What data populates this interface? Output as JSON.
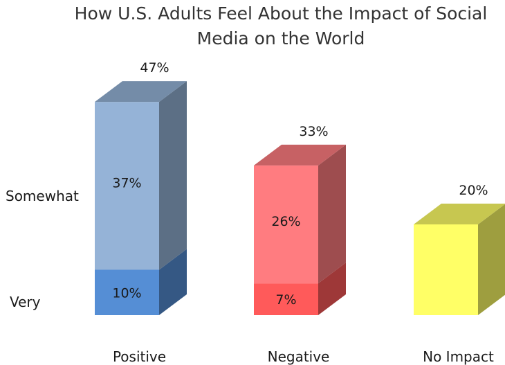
{
  "chart_data": {
    "type": "bar",
    "subtype": "stacked-3d",
    "title": "How U.S. Adults Feel About the Impact of Social Media on the World",
    "categories": [
      "Positive",
      "Negative",
      "No Impact"
    ],
    "series": [
      {
        "name": "Very",
        "values": [
          10,
          7,
          20
        ]
      },
      {
        "name": "Somewhat",
        "values": [
          37,
          26,
          null
        ]
      }
    ],
    "totals": [
      47,
      33,
      20
    ],
    "value_labels": {
      "Very": [
        "10%",
        "7%",
        ""
      ],
      "Somewhat": [
        "37%",
        "26%",
        ""
      ],
      "totals": [
        "47%",
        "33%",
        "20%"
      ]
    },
    "row_labels": [
      "Very",
      "Somewhat"
    ],
    "colors": {
      "Positive": {
        "Very": "#558ed5",
        "Somewhat": "#95b3d7"
      },
      "Negative": {
        "Very": "#ff5a5a",
        "Somewhat": "#ff7c80"
      },
      "No Impact": {
        "Very": "#ffff66"
      }
    },
    "axes": {
      "visible": false
    },
    "grid": false,
    "legend": "none"
  }
}
